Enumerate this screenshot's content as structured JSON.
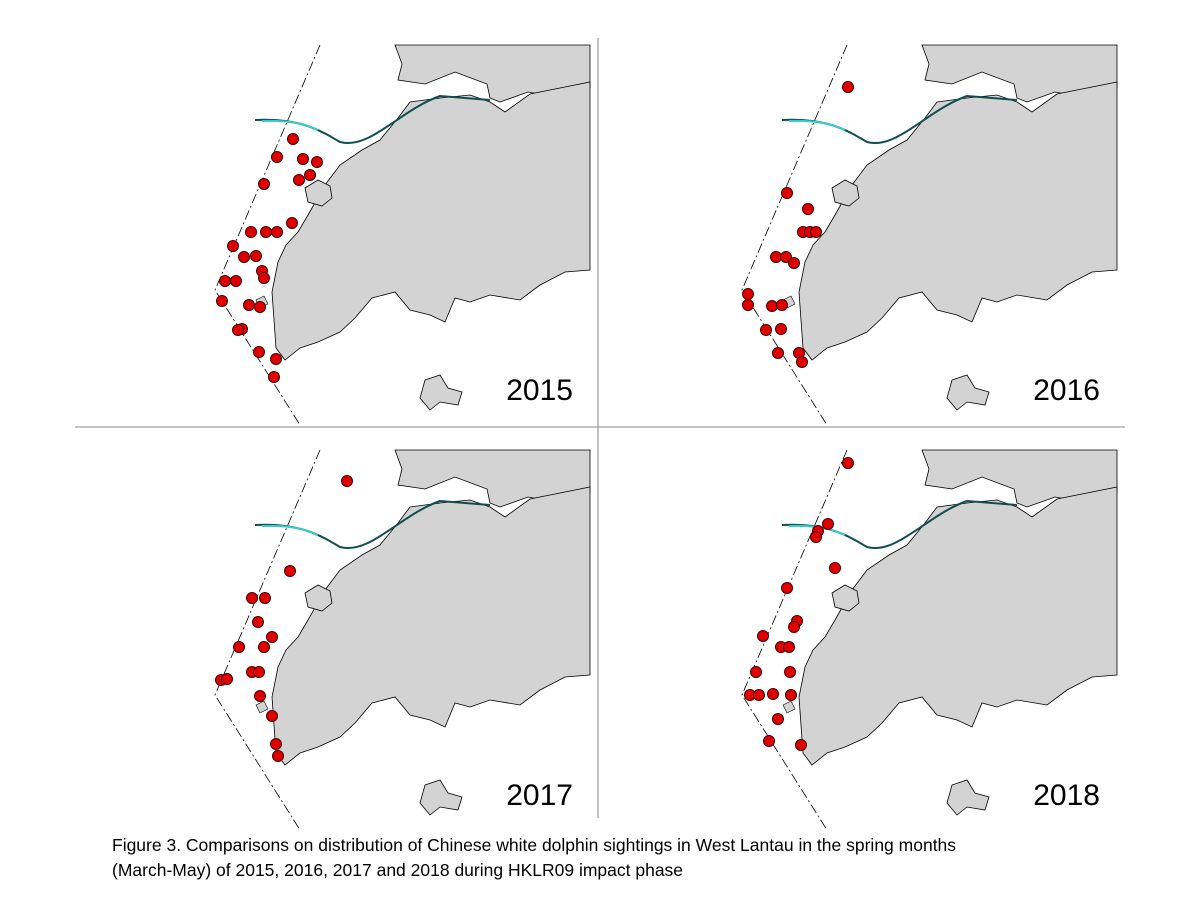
{
  "panels": [
    {
      "label": "2015"
    },
    {
      "label": "2016"
    },
    {
      "label": "2017"
    },
    {
      "label": "2018"
    }
  ],
  "caption": [
    "Figure 3.  Comparisons on distribution of Chinese white dolphin sightings in West Lantau in the spring months",
    "(March-May) of 2015, 2016, 2017 and 2018 during HKLR09 impact phase"
  ]
}
